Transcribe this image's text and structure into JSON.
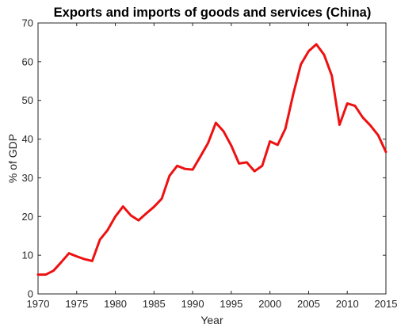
{
  "chart_data": {
    "type": "line",
    "title": "Exports and imports of goods and services (China)",
    "xlabel": "Year",
    "ylabel": "% of GDP",
    "xlim": [
      1970,
      2015
    ],
    "ylim": [
      0,
      70
    ],
    "xticks": [
      "1970",
      "1975",
      "1980",
      "1985",
      "1990",
      "1995",
      "2000",
      "2005",
      "2010",
      "2015"
    ],
    "yticks": [
      "0",
      "10",
      "20",
      "30",
      "40",
      "50",
      "60",
      "70"
    ],
    "grid": false,
    "line_color": "#ee1111",
    "x": [
      1970,
      1971,
      1972,
      1973,
      1974,
      1975,
      1976,
      1977,
      1978,
      1979,
      1980,
      1981,
      1982,
      1983,
      1984,
      1985,
      1986,
      1987,
      1988,
      1989,
      1990,
      1991,
      1992,
      1993,
      1994,
      1995,
      1996,
      1997,
      1998,
      1999,
      2000,
      2001,
      2002,
      2003,
      2004,
      2005,
      2006,
      2007,
      2008,
      2009,
      2010,
      2011,
      2012,
      2013,
      2014,
      2015
    ],
    "y": [
      5.0,
      5.0,
      6.0,
      8.2,
      10.5,
      9.7,
      9.0,
      8.5,
      14.0,
      16.5,
      20.0,
      22.6,
      20.3,
      19.0,
      20.8,
      22.5,
      24.6,
      30.5,
      33.1,
      32.3,
      32.1,
      35.5,
      39.0,
      44.2,
      42.0,
      38.3,
      33.7,
      34.0,
      31.7,
      33.1,
      39.4,
      38.5,
      42.7,
      51.5,
      59.3,
      62.7,
      64.5,
      61.8,
      56.4,
      43.7,
      49.2,
      48.6,
      45.6,
      43.5,
      41.0,
      36.7
    ]
  }
}
